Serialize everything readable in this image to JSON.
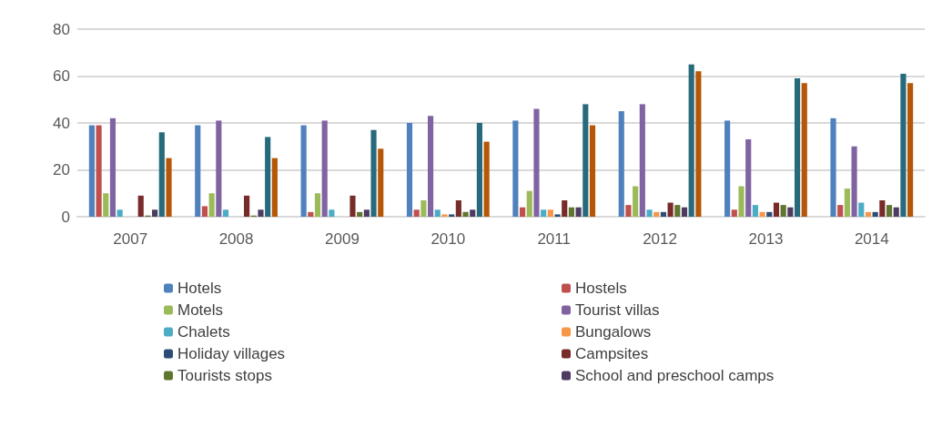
{
  "chart_data": {
    "type": "bar",
    "categories": [
      "2007",
      "2008",
      "2009",
      "2010",
      "2011",
      "2012",
      "2013",
      "2014"
    ],
    "series": [
      {
        "name": "Hotels",
        "color": "#4f81bd",
        "values": [
          39,
          39,
          39,
          40,
          41,
          45,
          41,
          42
        ]
      },
      {
        "name": "Hostels",
        "color": "#c0504d",
        "values": [
          39,
          4.5,
          2,
          3,
          4,
          5,
          3,
          5
        ]
      },
      {
        "name": "Motels",
        "color": "#9bbb59",
        "values": [
          10,
          10,
          10,
          7,
          11,
          13,
          13,
          12
        ]
      },
      {
        "name": "Tourist villas",
        "color": "#8064a2",
        "values": [
          42,
          41,
          41,
          43,
          46,
          48,
          33,
          30
        ]
      },
      {
        "name": "Chalets",
        "color": "#4bacc6",
        "values": [
          3,
          3,
          3,
          3,
          3,
          3,
          5,
          6
        ]
      },
      {
        "name": "Bungalows",
        "color": "#f79646",
        "values": [
          null,
          null,
          null,
          1,
          3,
          2,
          2,
          2
        ]
      },
      {
        "name": "Holiday villages",
        "color": "#2c4d75",
        "values": [
          null,
          null,
          null,
          1,
          1,
          2,
          2,
          2
        ]
      },
      {
        "name": "Campsites",
        "color": "#772c2a",
        "values": [
          9,
          9,
          9,
          7,
          7,
          6,
          6,
          7
        ]
      },
      {
        "name": "Tourists stops",
        "color": "#5f7530",
        "values": [
          0.5,
          0.5,
          2,
          2,
          4,
          5,
          5,
          5
        ]
      },
      {
        "name": "School and preschool camps",
        "color": "#4d3b62",
        "values": [
          3,
          3,
          3,
          3,
          4,
          4,
          4,
          4
        ]
      },
      {
        "color": "#276a7c",
        "values": [
          36,
          34,
          37,
          40,
          48,
          65,
          59,
          61
        ]
      },
      {
        "color": "#b65708",
        "values": [
          25,
          25,
          29,
          32,
          39,
          62,
          57,
          57
        ]
      }
    ],
    "ylim": [
      0,
      80
    ],
    "yticks": [
      0,
      20,
      40,
      60,
      80
    ],
    "grid": "y",
    "legend": "bottom"
  }
}
